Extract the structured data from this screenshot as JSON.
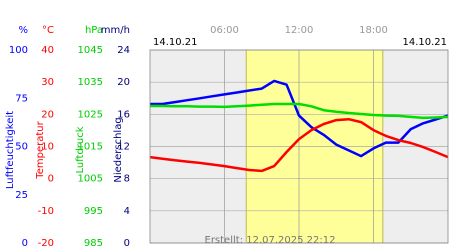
{
  "chart_data": {
    "type": "line",
    "date_start": "14.10.21",
    "date_end": "14.10.21",
    "footer": "Erstellt: 12.07.2025 22:12",
    "xlim": [
      0,
      24
    ],
    "xticks": [
      {
        "value": 6,
        "label": "06:00"
      },
      {
        "value": 12,
        "label": "12:00"
      },
      {
        "value": 18,
        "label": "18:00"
      }
    ],
    "daylight": [
      7.75,
      18.75
    ],
    "grid": true,
    "axes": [
      {
        "unit": "%",
        "label": "Luftfeuchtigkeit",
        "color": "#0000ff",
        "ylim": [
          0,
          100
        ],
        "yticks": [
          100,
          75,
          50,
          25,
          0
        ]
      },
      {
        "unit": "°C",
        "label": "Temperatur",
        "color": "#ff0000",
        "ylim": [
          -20,
          40
        ],
        "yticks": [
          40,
          30,
          20,
          10,
          0,
          -10,
          -20
        ]
      },
      {
        "unit": "hPa",
        "label": "Luftdruck",
        "color": "#00cc00",
        "ylim": [
          985,
          1045
        ],
        "yticks": [
          1045,
          1035,
          1025,
          1015,
          1005,
          995,
          985
        ]
      },
      {
        "unit": "mm/h",
        "label": "Niederschlag",
        "color": "#000080",
        "ylim": [
          0,
          24
        ],
        "yticks": [
          24,
          20,
          16,
          12,
          8,
          4,
          0
        ]
      }
    ],
    "x": [
      0,
      1,
      2,
      3,
      4,
      5,
      6,
      7,
      8,
      9,
      10,
      11,
      12,
      13,
      14,
      15,
      16,
      17,
      18,
      19,
      20,
      21,
      22,
      23,
      24
    ],
    "series": [
      {
        "axis": 0,
        "color": "#0000ff",
        "values": [
          72,
          72,
          73,
          74,
          75,
          76,
          77,
          78,
          79,
          80,
          84,
          82,
          66,
          60,
          56,
          51,
          48,
          45,
          49,
          52,
          52,
          59,
          62,
          64,
          66
        ]
      },
      {
        "axis": 2,
        "color": "#00dd00",
        "values": [
          1027.6,
          1027.6,
          1027.5,
          1027.5,
          1027.4,
          1027.4,
          1027.3,
          1027.5,
          1027.7,
          1028,
          1028.2,
          1028.2,
          1028.2,
          1027.5,
          1026.3,
          1025.8,
          1025.4,
          1025.1,
          1024.8,
          1024.6,
          1024.5,
          1024.2,
          1023.9,
          1024,
          1024.2
        ]
      },
      {
        "axis": 1,
        "color": "#ff0000",
        "values": [
          6.7,
          6.2,
          5.7,
          5.3,
          4.9,
          4.4,
          3.9,
          3.3,
          2.7,
          2.4,
          3.9,
          8.3,
          12.3,
          15.1,
          17,
          18.2,
          18.5,
          17.6,
          15.1,
          13.3,
          12,
          11.1,
          9.8,
          8.3,
          6.7
        ]
      }
    ]
  }
}
